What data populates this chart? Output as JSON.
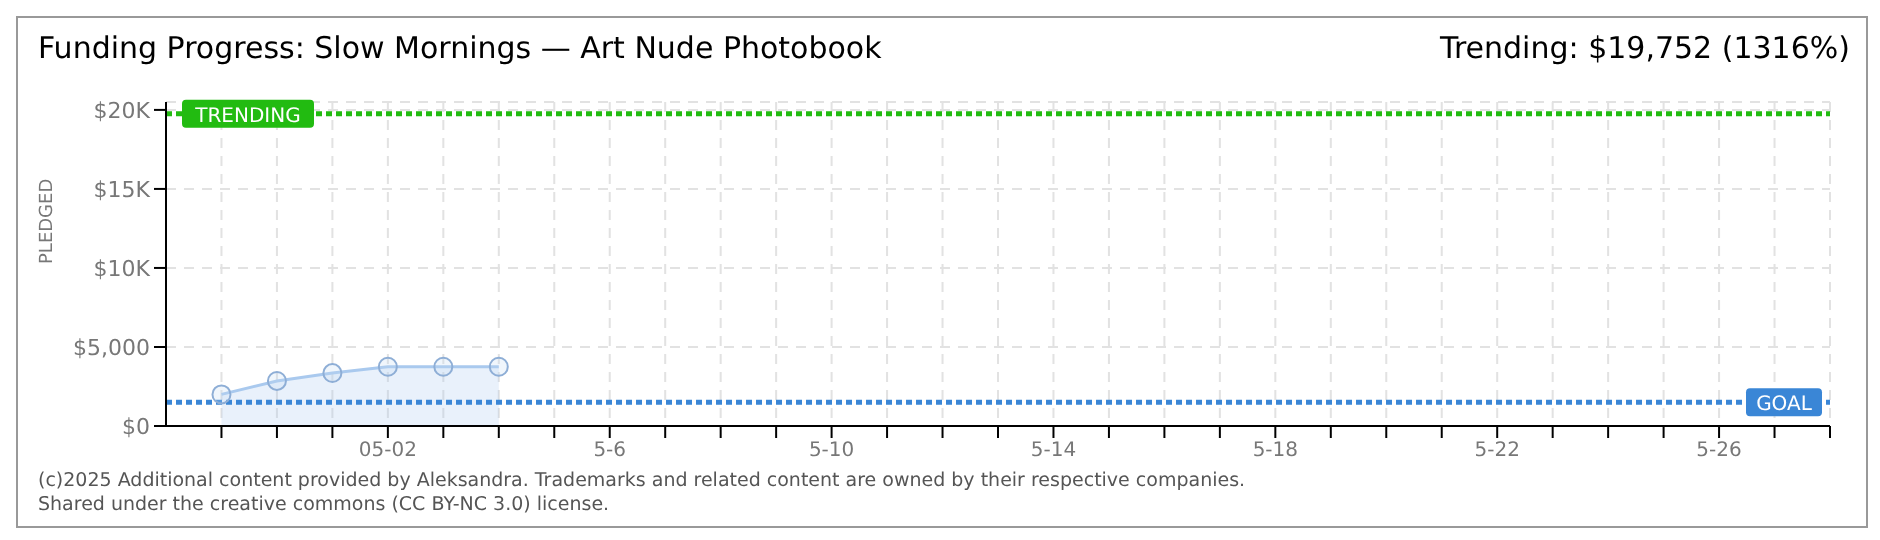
{
  "chart_data": {
    "type": "area",
    "title": "Funding Progress: Slow Mornings — Art Nude Photobook",
    "subtitle": "Trending: $19,752 (1316%)",
    "ylabel": "PLEDGED",
    "x": [
      "2025-04-29",
      "2025-04-30",
      "2025-05-01",
      "2025-05-02",
      "2025-05-03",
      "2025-05-04"
    ],
    "series": [
      {
        "color": "#a9c9ee",
        "values": [
          2000,
          2850,
          3350,
          3750,
          3750,
          3750
        ]
      }
    ],
    "marker": "circle",
    "grid": true,
    "xlim": [
      "2025-04-28",
      "2025-05-28"
    ],
    "xticks": [
      {
        "value": "2025-04-29",
        "label": null
      },
      {
        "value": "2025-04-30",
        "label": null
      },
      {
        "value": "2025-05-01",
        "label": null
      },
      {
        "value": "2025-05-02",
        "label": "05-02"
      },
      {
        "value": "2025-05-03",
        "label": null
      },
      {
        "value": "2025-05-04",
        "label": null
      },
      {
        "value": "2025-05-05",
        "label": null
      },
      {
        "value": "2025-05-06",
        "label": "5-6"
      },
      {
        "value": "2025-05-07",
        "label": null
      },
      {
        "value": "2025-05-08",
        "label": null
      },
      {
        "value": "2025-05-09",
        "label": null
      },
      {
        "value": "2025-05-10",
        "label": "5-10"
      },
      {
        "value": "2025-05-11",
        "label": null
      },
      {
        "value": "2025-05-12",
        "label": null
      },
      {
        "value": "2025-05-13",
        "label": null
      },
      {
        "value": "2025-05-14",
        "label": "5-14"
      },
      {
        "value": "2025-05-15",
        "label": null
      },
      {
        "value": "2025-05-16",
        "label": null
      },
      {
        "value": "2025-05-17",
        "label": null
      },
      {
        "value": "2025-05-18",
        "label": "5-18"
      },
      {
        "value": "2025-05-19",
        "label": null
      },
      {
        "value": "2025-05-20",
        "label": null
      },
      {
        "value": "2025-05-21",
        "label": null
      },
      {
        "value": "2025-05-22",
        "label": "5-22"
      },
      {
        "value": "2025-05-23",
        "label": null
      },
      {
        "value": "2025-05-24",
        "label": null
      },
      {
        "value": "2025-05-25",
        "label": null
      },
      {
        "value": "2025-05-26",
        "label": "5-26"
      },
      {
        "value": "2025-05-27",
        "label": null
      },
      {
        "value": "2025-05-28",
        "label": null
      }
    ],
    "ylim": [
      0,
      20500
    ],
    "yticks": [
      {
        "value": 0,
        "label": "$0"
      },
      {
        "value": 5000,
        "label": "$5,000"
      },
      {
        "value": 10000,
        "label": "$10K"
      },
      {
        "value": 15000,
        "label": "$15K"
      },
      {
        "value": 20000,
        "label": "$20K"
      }
    ],
    "ref_lines": [
      {
        "axis": "y",
        "value": 19752,
        "label": "TRENDING",
        "color": "#22bb11",
        "line_style": "dotted"
      },
      {
        "axis": "y",
        "value": 1500,
        "label": "GOAL",
        "color": "#3a86d6",
        "line_style": "dotted"
      }
    ],
    "annotations": [
      "(c)2025 Additional content provided by Aleksandra. Trademarks and related content are owned by their respective companies.",
      "Shared under the creative commons (CC BY-NC 3.0) license."
    ]
  }
}
